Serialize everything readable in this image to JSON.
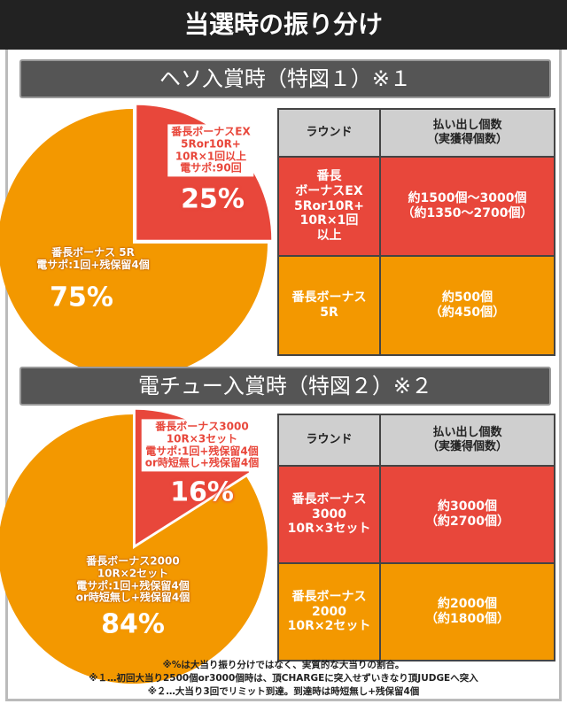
{
  "title": "当選時の振り分け",
  "sections": [
    {
      "heading": "ヘソ入賞時（特図１）※１",
      "table": {
        "header": [
          "ラウンド",
          "払い出し個数\n（実獲得個数）"
        ],
        "rows": [
          [
            "番長\nボーナスEX\n5Ror10R+\n10R×1回\n以上",
            "約1500個～3000個\n（約1350～2700個）"
          ],
          [
            "番長ボーナス\n5R",
            "約500個\n（約450個）"
          ]
        ]
      }
    },
    {
      "heading": "電チュー入賞時（特図２）※２",
      "table": {
        "header": [
          "ラウンド",
          "払い出し個数\n（実獲得個数）"
        ],
        "rows": [
          [
            "番長ボーナス\n3000\n10R×3セット",
            "約3000個\n（約2700個）"
          ],
          [
            "番長ボーナス\n2000\n10R×2セット",
            "約2000個\n（約1800個）"
          ]
        ]
      }
    }
  ],
  "chart_data": [
    {
      "type": "pie",
      "categories": [
        "番長ボーナスEX\n5Ror10R+\n10R×1回以上\n電サポ:90回",
        "番長ボーナス 5R\n電サポ:1回+残保留4個"
      ],
      "values": [
        25,
        75
      ],
      "value_labels": [
        "25%",
        "75%"
      ],
      "colors": [
        "#e8473b",
        "#f39800"
      ]
    },
    {
      "type": "pie",
      "categories": [
        "番長ボーナス3000\n10R×3セット\n電サポ:1回+残保留4個\nor時短無し+残保留4個",
        "番長ボーナス2000\n10R×2セット\n電サポ:1回+残保留4個\nor時短無し+残保留4個"
      ],
      "values": [
        16,
        84
      ],
      "value_labels": [
        "16%",
        "84%"
      ],
      "colors": [
        "#e8473b",
        "#f39800"
      ]
    }
  ],
  "notes": [
    "※%は大当り振り分けではなく、実質的な大当りの割合。",
    "※１…初回大当り2500個or3000個時は、頂CHARGEに突入せずいきなり頂JUDGEへ突入",
    "※２…大当り3回でリミット到達。到達時は時短無し+残保留4個"
  ]
}
